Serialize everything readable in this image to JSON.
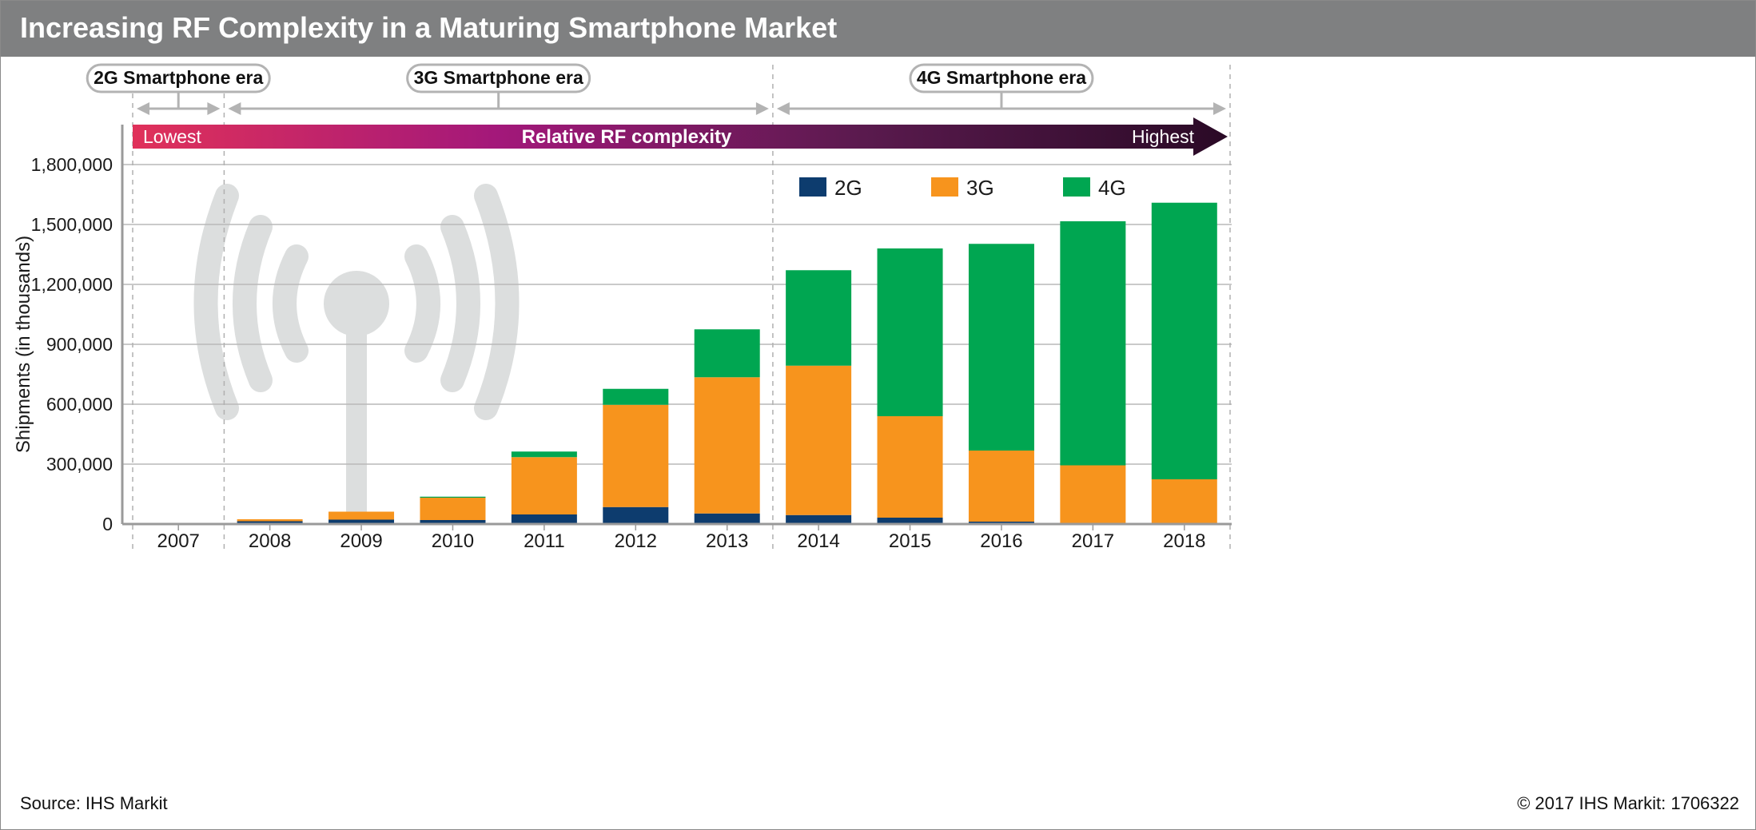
{
  "header": {
    "title": "Increasing RF Complexity in a Maturing Smartphone Market"
  },
  "footer": {
    "source": "Source: IHS Markit",
    "copyright": "© 2017 IHS Markit: 1706322"
  },
  "eras": [
    {
      "label": "2G Smartphone era",
      "years": [
        "2007"
      ]
    },
    {
      "label": "3G Smartphone era",
      "years": [
        "2008",
        "2013"
      ]
    },
    {
      "label": "4G Smartphone era",
      "years": [
        "2014",
        "2018"
      ]
    }
  ],
  "complexity_arrow": {
    "center_label": "Relative RF complexity",
    "low_label": "Lowest",
    "high_label": "Highest",
    "gradient_colors": [
      "#e0315a",
      "#a3187a",
      "#5a1a4e",
      "#2a0a26"
    ]
  },
  "colors": {
    "2G": "#0d3c6e",
    "3G": "#f7941d",
    "4G": "#00a651",
    "grid": "#b9b9b9",
    "watermark": "#dcdede"
  },
  "watermark_icon": "radio-signal-icon",
  "chart_data": {
    "type": "bar",
    "stacked": true,
    "categories": [
      "2007",
      "2008",
      "2009",
      "2010",
      "2011",
      "2012",
      "2013",
      "2014",
      "2015",
      "2016",
      "2017",
      "2018"
    ],
    "series": [
      {
        "name": "2G",
        "values": [
          4000,
          14000,
          22000,
          20000,
          48000,
          85000,
          53000,
          45000,
          32000,
          12000,
          4000,
          2000
        ]
      },
      {
        "name": "3G",
        "values": [
          1000,
          10000,
          40000,
          112000,
          287000,
          512000,
          682000,
          748000,
          508000,
          356000,
          290000,
          222000
        ]
      },
      {
        "name": "4G",
        "values": [
          0,
          0,
          0,
          5000,
          28000,
          80000,
          240000,
          478000,
          840000,
          1035000,
          1222000,
          1385000
        ]
      }
    ],
    "xlabel": "",
    "ylabel": "Shipments (in thousands)",
    "ylim": [
      0,
      1800000
    ],
    "yticks": [
      0,
      300000,
      600000,
      900000,
      1200000,
      1500000,
      1800000
    ],
    "ytick_labels": [
      "0",
      "300,000",
      "600,000",
      "900,000",
      "1,200,000",
      "1,500,000",
      "1,800,000"
    ],
    "grid": true,
    "legend": {
      "placement": "top-right",
      "entries": [
        "2G",
        "3G",
        "4G"
      ]
    }
  }
}
